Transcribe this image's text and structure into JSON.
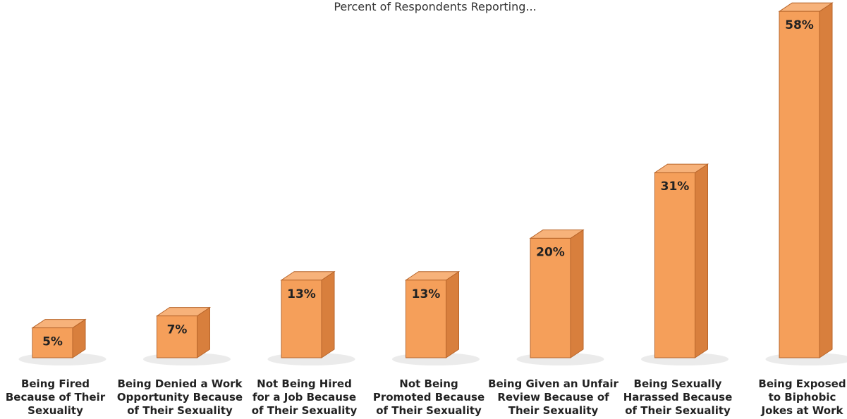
{
  "chart_data": {
    "type": "bar",
    "title": "Percent of Respondents Reporting...",
    "xlabel": "",
    "ylabel": "",
    "ylim": [
      0,
      58
    ],
    "grid": false,
    "categories": [
      [
        "Being Fired",
        "Because of Their",
        "Sexuality"
      ],
      [
        "Being Denied a Work",
        "Opportunity Because",
        "of Their Sexuality"
      ],
      [
        "Not Being Hired",
        "for a Job Because",
        "of Their Sexuality"
      ],
      [
        "Not Being",
        "Promoted Because",
        "of Their Sexuality"
      ],
      [
        "Being Given an Unfair",
        "Review Because of",
        "Their Sexuality"
      ],
      [
        "Being Sexually",
        "Harassed Because",
        "of Their Sexuality"
      ],
      [
        "Being Exposed",
        "to Biphobic",
        "Jokes at Work"
      ]
    ],
    "values": [
      5,
      7,
      13,
      13,
      20,
      31,
      58
    ],
    "value_labels": [
      "5%",
      "7%",
      "13%",
      "13%",
      "20%",
      "31%",
      "58%"
    ],
    "colors": {
      "bar_front": "#F59F5A",
      "bar_side": "#D87F3D",
      "bar_top": "#F7B27A",
      "bar_edge": "#B8652A",
      "shadow": "#E6E6E6"
    }
  }
}
